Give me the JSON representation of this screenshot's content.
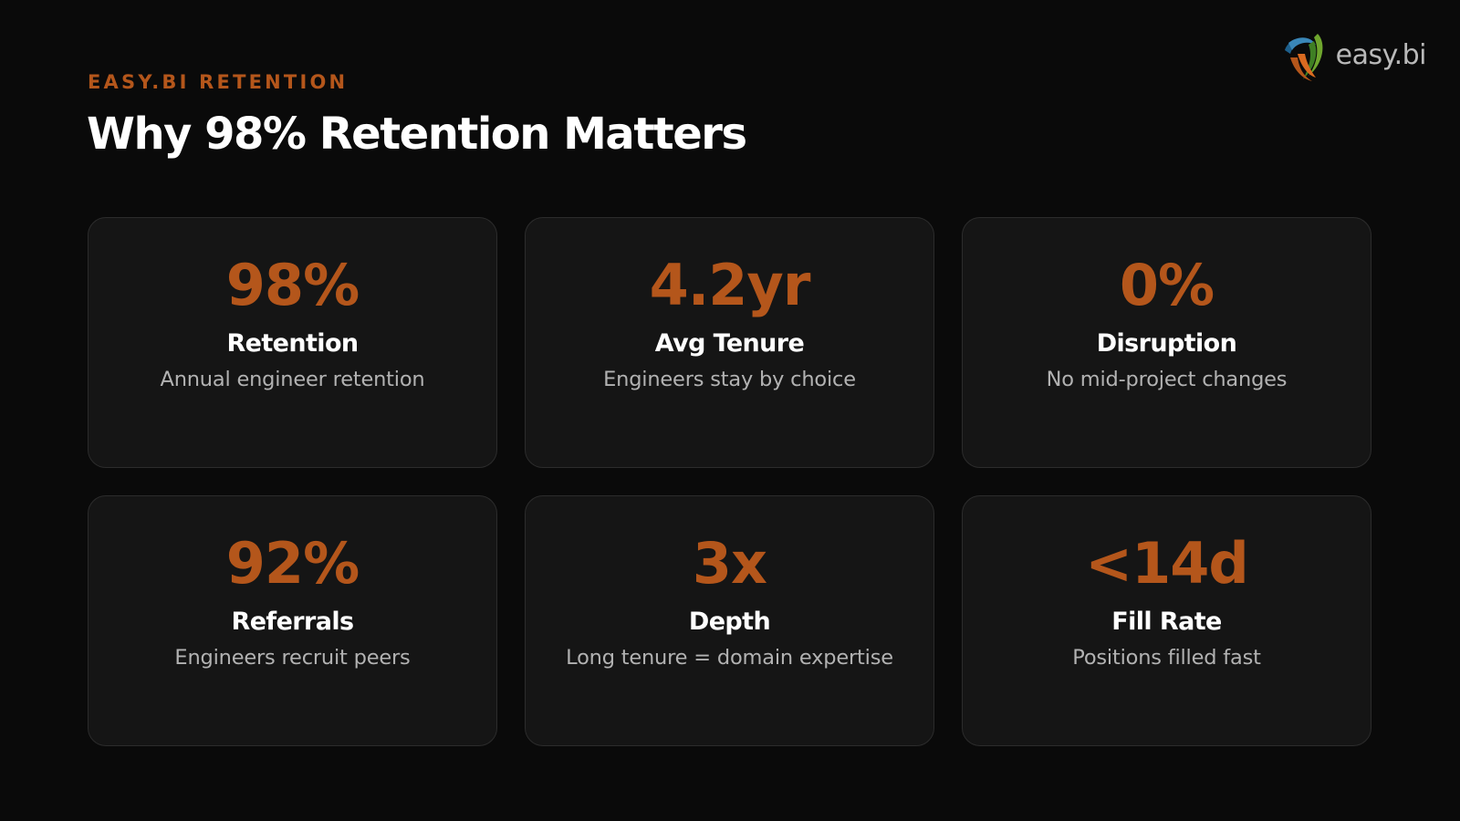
{
  "brand": {
    "name": "easy.bi",
    "icon": "easybi-logo-icon",
    "colors": {
      "accent": "#b4561b",
      "background": "#0a0a0a",
      "card": "#151515"
    }
  },
  "eyebrow": "EASY.BI RETENTION",
  "title": "Why 98% Retention Matters",
  "cards": [
    {
      "value": "98%",
      "label": "Retention",
      "description": "Annual engineer retention"
    },
    {
      "value": "4.2yr",
      "label": "Avg Tenure",
      "description": "Engineers stay by choice"
    },
    {
      "value": "0%",
      "label": "Disruption",
      "description": "No mid-project changes"
    },
    {
      "value": "92%",
      "label": "Referrals",
      "description": "Engineers recruit peers"
    },
    {
      "value": "3x",
      "label": "Depth",
      "description": "Long tenure = domain expertise"
    },
    {
      "value": "<14d",
      "label": "Fill Rate",
      "description": "Positions filled fast"
    }
  ]
}
